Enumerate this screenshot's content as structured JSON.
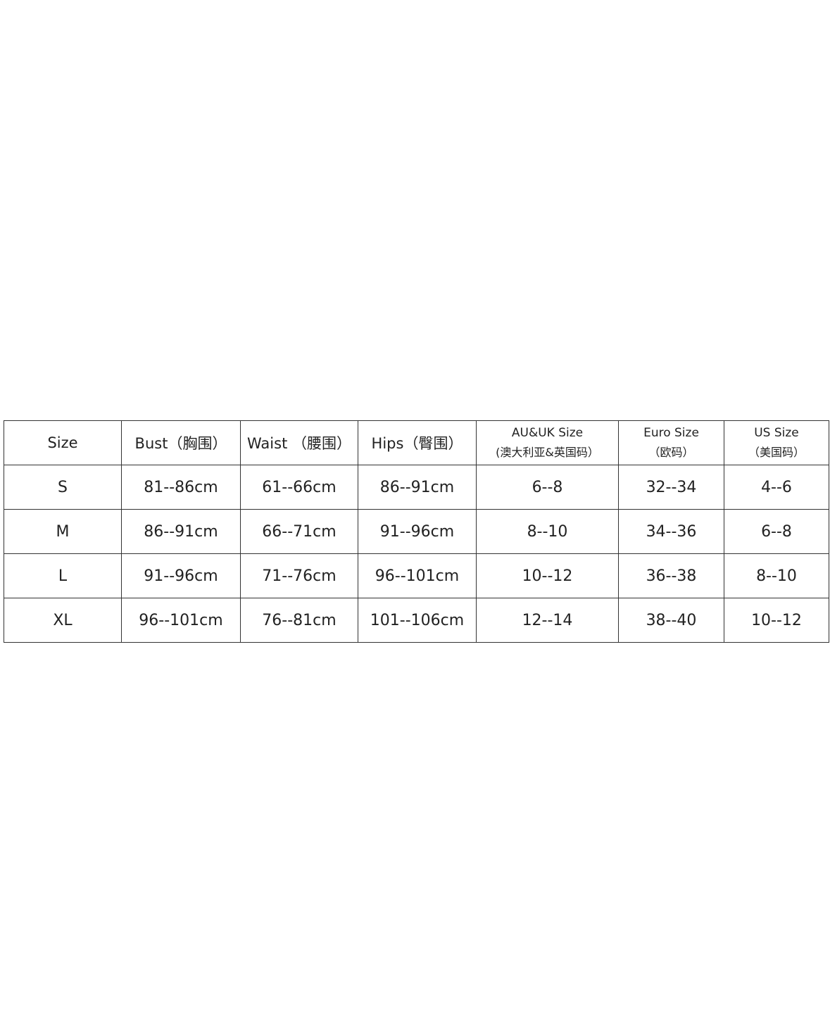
{
  "size_chart": {
    "headers": [
      {
        "line1": "Size",
        "line2": ""
      },
      {
        "line1": "Bust（胸围）",
        "line2": ""
      },
      {
        "line1": "Waist （腰围）",
        "line2": ""
      },
      {
        "line1": "Hips（臀围）",
        "line2": ""
      },
      {
        "line1": "AU&UK Size",
        "line2": "(澳大利亚&英国码）"
      },
      {
        "line1": "Euro Size",
        "line2": "（欧码）"
      },
      {
        "line1": "US Size",
        "line2": "（美国码）"
      }
    ],
    "rows": [
      [
        "S",
        "81--86cm",
        "61--66cm",
        "86--91cm",
        "6--8",
        "32--34",
        "4--6"
      ],
      [
        "M",
        "86--91cm",
        "66--71cm",
        "91--96cm",
        "8--10",
        "34--36",
        "6--8"
      ],
      [
        "L",
        "91--96cm",
        "71--76cm",
        "96--101cm",
        "10--12",
        "36--38",
        "8--10"
      ],
      [
        "XL",
        "96--101cm",
        "76--81cm",
        "101--106cm",
        "12--14",
        "38--40",
        "10--12"
      ]
    ]
  }
}
